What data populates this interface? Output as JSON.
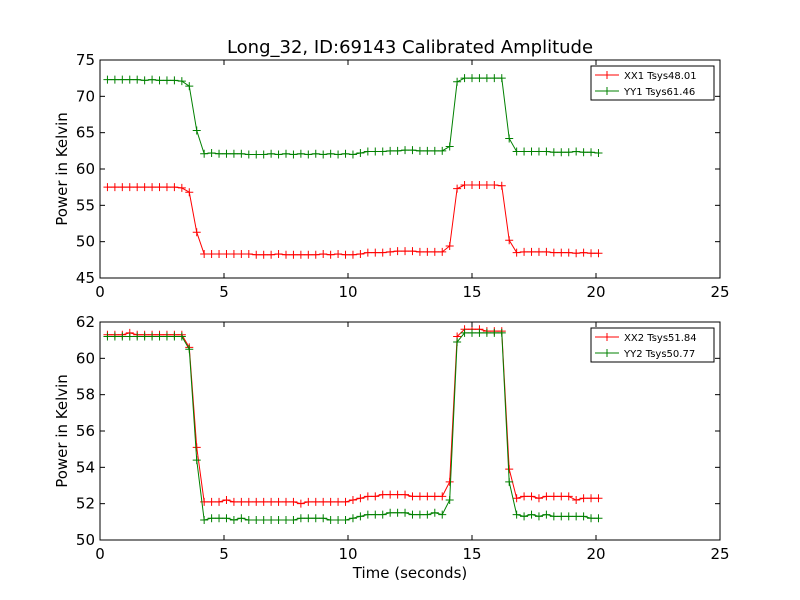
{
  "chart_data": [
    {
      "type": "line",
      "title": "Long_32, ID:69143 Calibrated Amplitude",
      "xlabel": "",
      "ylabel": "Power in Kelvin",
      "xlim": [
        0,
        25
      ],
      "ylim": [
        45,
        75
      ],
      "xticks": [
        0,
        5,
        10,
        15,
        20,
        25
      ],
      "yticks": [
        45,
        50,
        55,
        60,
        65,
        70,
        75
      ],
      "grid": false,
      "legend_position": "top-right",
      "x": [
        0.3,
        0.6,
        0.9,
        1.2,
        1.5,
        1.8,
        2.1,
        2.4,
        2.7,
        3.0,
        3.3,
        3.6,
        3.9,
        4.2,
        4.5,
        4.8,
        5.1,
        5.4,
        5.7,
        6.0,
        6.3,
        6.6,
        6.9,
        7.2,
        7.5,
        7.8,
        8.1,
        8.4,
        8.7,
        9.0,
        9.3,
        9.6,
        9.9,
        10.2,
        10.5,
        10.8,
        11.1,
        11.4,
        11.7,
        12.0,
        12.3,
        12.6,
        12.9,
        13.2,
        13.5,
        13.8,
        14.1,
        14.4,
        14.7,
        15.0,
        15.3,
        15.6,
        15.9,
        16.2,
        16.5,
        16.8,
        17.1,
        17.4,
        17.7,
        18.0,
        18.3,
        18.6,
        18.9,
        19.2,
        19.5,
        19.8,
        20.1
      ],
      "series": [
        {
          "name": "XX1 Tsys48.01",
          "color": "#ff0000",
          "values": [
            57.5,
            57.5,
            57.5,
            57.5,
            57.5,
            57.5,
            57.5,
            57.5,
            57.5,
            57.5,
            57.4,
            56.8,
            51.3,
            48.3,
            48.3,
            48.3,
            48.3,
            48.3,
            48.3,
            48.3,
            48.2,
            48.2,
            48.2,
            48.3,
            48.2,
            48.2,
            48.2,
            48.2,
            48.2,
            48.3,
            48.2,
            48.3,
            48.2,
            48.2,
            48.3,
            48.5,
            48.5,
            48.5,
            48.6,
            48.7,
            48.7,
            48.7,
            48.6,
            48.6,
            48.6,
            48.6,
            49.4,
            57.3,
            57.8,
            57.8,
            57.8,
            57.8,
            57.8,
            57.7,
            50.2,
            48.5,
            48.6,
            48.6,
            48.6,
            48.6,
            48.5,
            48.5,
            48.5,
            48.4,
            48.5,
            48.4,
            48.4
          ]
        },
        {
          "name": "YY1 Tsys61.46",
          "color": "#008000",
          "values": [
            72.3,
            72.3,
            72.3,
            72.3,
            72.3,
            72.2,
            72.3,
            72.2,
            72.2,
            72.2,
            72.1,
            71.4,
            65.3,
            62.1,
            62.2,
            62.1,
            62.1,
            62.1,
            62.1,
            62.0,
            62.0,
            62.0,
            62.1,
            62.0,
            62.1,
            62.0,
            62.1,
            62.0,
            62.1,
            62.0,
            62.1,
            62.0,
            62.1,
            62.0,
            62.2,
            62.4,
            62.4,
            62.4,
            62.5,
            62.5,
            62.6,
            62.6,
            62.5,
            62.5,
            62.5,
            62.5,
            63.1,
            72.0,
            72.5,
            72.5,
            72.5,
            72.5,
            72.5,
            72.5,
            64.2,
            62.4,
            62.4,
            62.4,
            62.4,
            62.4,
            62.3,
            62.3,
            62.3,
            62.4,
            62.3,
            62.3,
            62.2
          ]
        }
      ]
    },
    {
      "type": "line",
      "title": "",
      "xlabel": "Time (seconds)",
      "ylabel": "Power in Kelvin",
      "xlim": [
        0,
        25
      ],
      "ylim": [
        50,
        62
      ],
      "xticks": [
        0,
        5,
        10,
        15,
        20,
        25
      ],
      "yticks": [
        50,
        52,
        54,
        56,
        58,
        60,
        62
      ],
      "grid": false,
      "legend_position": "top-right",
      "x": [
        0.3,
        0.6,
        0.9,
        1.2,
        1.5,
        1.8,
        2.1,
        2.4,
        2.7,
        3.0,
        3.3,
        3.6,
        3.9,
        4.2,
        4.5,
        4.8,
        5.1,
        5.4,
        5.7,
        6.0,
        6.3,
        6.6,
        6.9,
        7.2,
        7.5,
        7.8,
        8.1,
        8.4,
        8.7,
        9.0,
        9.3,
        9.6,
        9.9,
        10.2,
        10.5,
        10.8,
        11.1,
        11.4,
        11.7,
        12.0,
        12.3,
        12.6,
        12.9,
        13.2,
        13.5,
        13.8,
        14.1,
        14.4,
        14.7,
        15.0,
        15.3,
        15.6,
        15.9,
        16.2,
        16.5,
        16.8,
        17.1,
        17.4,
        17.7,
        18.0,
        18.3,
        18.6,
        18.9,
        19.2,
        19.5,
        19.8,
        20.1
      ],
      "series": [
        {
          "name": "XX2 Tsys51.84",
          "color": "#ff0000",
          "values": [
            61.3,
            61.3,
            61.3,
            61.4,
            61.3,
            61.3,
            61.3,
            61.3,
            61.3,
            61.3,
            61.3,
            60.6,
            55.1,
            52.1,
            52.1,
            52.1,
            52.2,
            52.1,
            52.1,
            52.1,
            52.1,
            52.1,
            52.1,
            52.1,
            52.1,
            52.1,
            52.0,
            52.1,
            52.1,
            52.1,
            52.1,
            52.1,
            52.1,
            52.2,
            52.3,
            52.4,
            52.4,
            52.5,
            52.5,
            52.5,
            52.5,
            52.4,
            52.4,
            52.4,
            52.4,
            52.4,
            53.2,
            61.2,
            61.6,
            61.6,
            61.6,
            61.5,
            61.5,
            61.5,
            53.9,
            52.3,
            52.4,
            52.4,
            52.3,
            52.4,
            52.4,
            52.4,
            52.4,
            52.2,
            52.3,
            52.3,
            52.3
          ]
        },
        {
          "name": "YY2 Tsys50.77",
          "color": "#008000",
          "values": [
            61.2,
            61.2,
            61.2,
            61.2,
            61.2,
            61.2,
            61.2,
            61.2,
            61.2,
            61.2,
            61.2,
            60.5,
            54.4,
            51.1,
            51.2,
            51.2,
            51.2,
            51.1,
            51.2,
            51.1,
            51.1,
            51.1,
            51.1,
            51.1,
            51.1,
            51.1,
            51.2,
            51.2,
            51.2,
            51.2,
            51.1,
            51.1,
            51.1,
            51.2,
            51.3,
            51.4,
            51.4,
            51.4,
            51.5,
            51.5,
            51.5,
            51.4,
            51.4,
            51.4,
            51.5,
            51.4,
            52.2,
            60.9,
            61.4,
            61.4,
            61.4,
            61.4,
            61.4,
            61.4,
            53.2,
            51.4,
            51.3,
            51.4,
            51.3,
            51.4,
            51.3,
            51.3,
            51.3,
            51.3,
            51.3,
            51.2,
            51.2
          ]
        }
      ]
    }
  ]
}
